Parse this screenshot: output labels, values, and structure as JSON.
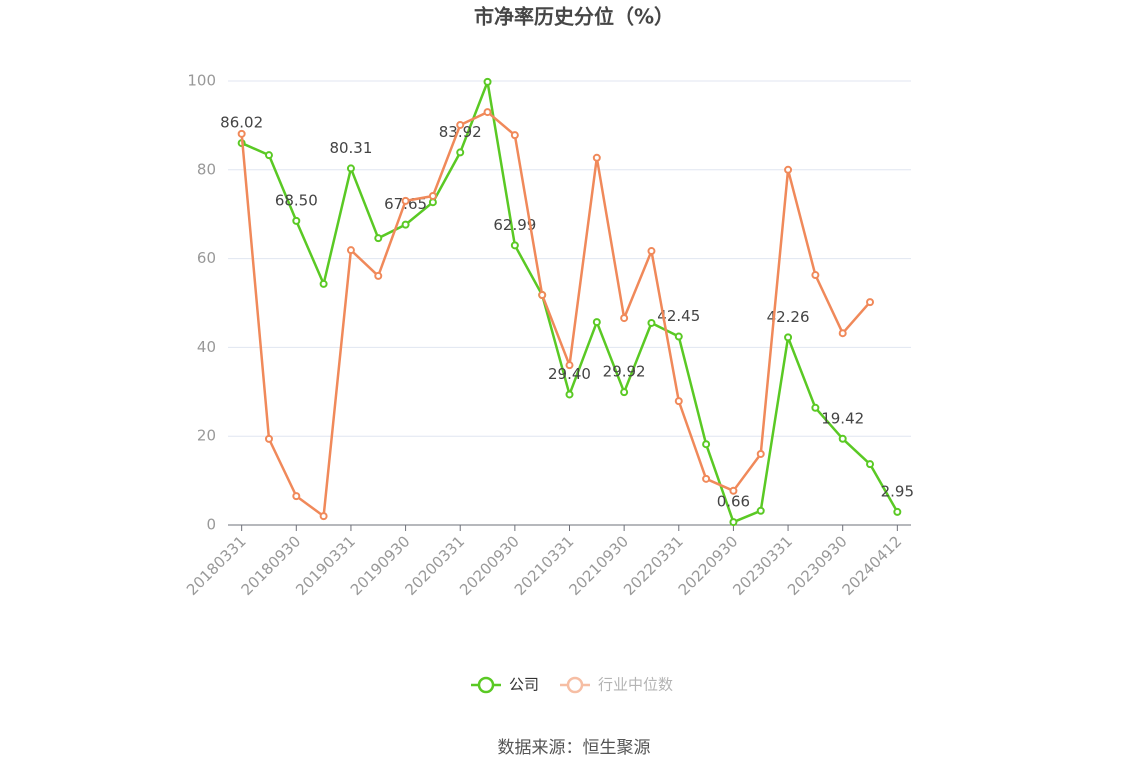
{
  "chart_data": {
    "type": "line",
    "title": "市净率历史分位（%）",
    "categories": [
      "20180331",
      null,
      "20180930",
      null,
      "20190331",
      null,
      "20190930",
      null,
      "20200331",
      null,
      "20200930",
      null,
      "20210331",
      null,
      "20210930",
      null,
      "20220331",
      null,
      "20220930",
      null,
      "20230331",
      null,
      "20230930",
      null,
      "20240412"
    ],
    "series": [
      {
        "name": "公司",
        "color": "#5ac924",
        "values": [
          86.02,
          83.3,
          68.5,
          54.3,
          80.31,
          64.6,
          67.65,
          72.7,
          83.92,
          99.8,
          62.99,
          51.8,
          29.4,
          45.7,
          29.92,
          45.5,
          42.45,
          18.2,
          0.66,
          3.2,
          42.26,
          26.4,
          19.42,
          13.7,
          2.95
        ],
        "value_labels": [
          "86.02",
          null,
          "68.50",
          null,
          "80.31",
          null,
          "67.65",
          null,
          "83.92",
          null,
          "62.99",
          null,
          "29.40",
          null,
          "29.92",
          null,
          "42.45",
          null,
          "0.66",
          null,
          "42.26",
          null,
          "19.42",
          null,
          "2.95"
        ]
      },
      {
        "name": "行业中位数",
        "color": "#f0895a",
        "values": [
          88.1,
          19.4,
          6.5,
          2.0,
          61.9,
          56.1,
          73.0,
          74.1,
          90.1,
          93.0,
          87.8,
          51.8,
          36.0,
          82.7,
          46.6,
          61.7,
          27.9,
          10.4,
          7.7,
          16.0,
          80.0,
          56.3,
          43.2,
          50.2,
          null
        ]
      }
    ],
    "ylim": [
      0,
      100
    ],
    "yticks": [
      0,
      20,
      40,
      60,
      80,
      100
    ],
    "grid": true,
    "legend": "bottom",
    "source": "数据来源：恒生聚源"
  }
}
